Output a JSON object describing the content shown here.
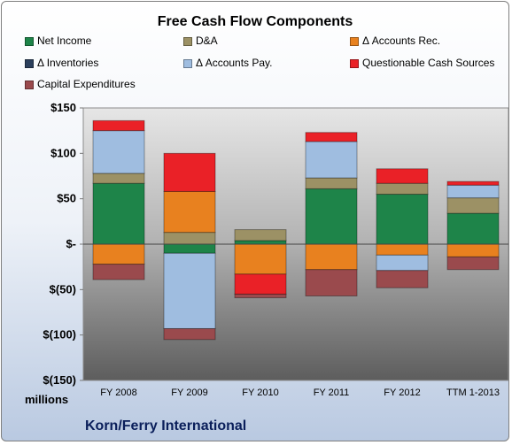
{
  "chart_data": {
    "type": "bar",
    "stacked": true,
    "title": "Free Cash Flow Components",
    "units_label": "millions",
    "company": "Korn/Ferry International",
    "categories": [
      "FY 2008",
      "FY 2009",
      "FY 2010",
      "FY 2011",
      "FY 2012",
      "TTM 1-2013"
    ],
    "ylim": [
      -150,
      150
    ],
    "yticks": [
      150,
      100,
      50,
      0,
      -50,
      -100,
      -150
    ],
    "ytick_labels": [
      "$150",
      "$100",
      "$50",
      "$-",
      "$(50)",
      "$(100)",
      "$(150)"
    ],
    "grid": false,
    "legend_position": "top",
    "series": [
      {
        "name": "Net Income",
        "color": "#1e8449",
        "values": [
          67,
          -10,
          4,
          61,
          55,
          34
        ]
      },
      {
        "name": "D&A",
        "color": "#9c9165",
        "values": [
          11,
          13,
          12,
          12,
          12,
          17
        ]
      },
      {
        "name": "Δ Accounts Rec.",
        "color": "#e8811f",
        "values": [
          -22,
          45,
          -33,
          -28,
          -12,
          -14
        ]
      },
      {
        "name": "Δ Inventories",
        "color": "#2b3f5c",
        "values": [
          0,
          0,
          0,
          0,
          0,
          0
        ]
      },
      {
        "name": "Δ Accounts Pay.",
        "color": "#9fbde0",
        "values": [
          47,
          -83,
          0,
          40,
          -17,
          14
        ]
      },
      {
        "name": "Questionable Cash Sources",
        "color": "#ea2127",
        "values": [
          11,
          42,
          -22,
          10,
          16,
          4
        ]
      },
      {
        "name": "Capital Expenditures",
        "color": "#9a4a4d",
        "values": [
          -17,
          -12,
          -4,
          -29,
          -19,
          -14
        ]
      }
    ]
  }
}
